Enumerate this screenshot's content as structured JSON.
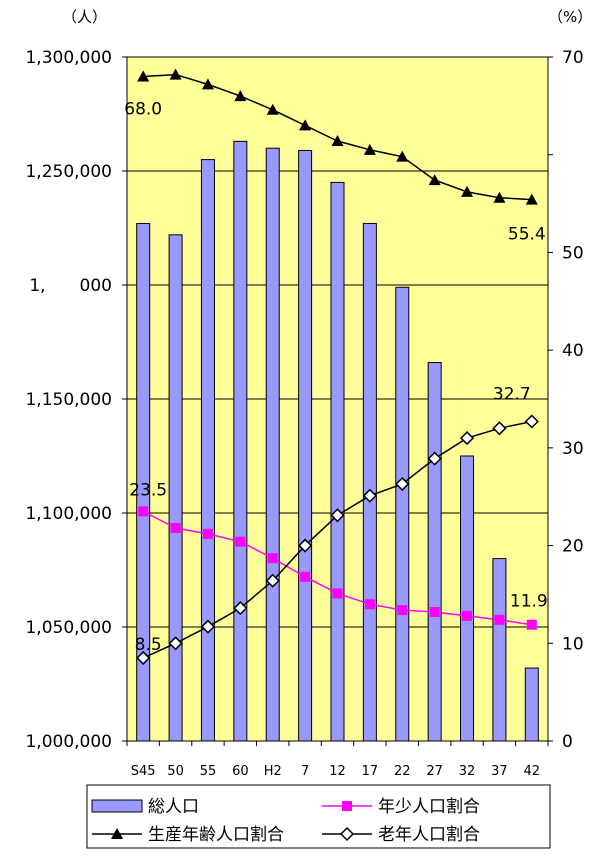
{
  "chart_data": {
    "type": "bar+line",
    "categories": [
      "S45",
      "50",
      "55",
      "60",
      "H2",
      "7",
      "12",
      "17",
      "22",
      "27",
      "32",
      "37",
      "42"
    ],
    "left_axis": {
      "unit": "（人）",
      "ylim": [
        1000000,
        1300000
      ],
      "ticks": [
        1000000,
        1050000,
        1100000,
        1150000,
        1200000,
        1250000,
        1300000
      ],
      "tick_labels": [
        "1,000,000",
        "1,050,000",
        "1,100,000",
        "1,150,000",
        "1,　　000",
        "1,250,000",
        "1,300,000"
      ]
    },
    "right_axis": {
      "unit": "（%）",
      "ylim": [
        0,
        70
      ],
      "ticks": [
        0,
        10,
        20,
        30,
        40,
        50,
        70
      ],
      "tick_labels": [
        "0",
        "10",
        "20",
        "30",
        "40",
        "50",
        "70"
      ]
    },
    "bars": {
      "name": "総人口",
      "color": "#9999FF",
      "values": [
        1227000,
        1222000,
        1255000,
        1263000,
        1260000,
        1259000,
        1245000,
        1227000,
        1199000,
        1166000,
        1125000,
        1080000,
        1032000
      ]
    },
    "lines": [
      {
        "name": "生産年齢人口割合",
        "color": "#000000",
        "marker": "triangle",
        "values": [
          68.0,
          68.2,
          67.2,
          66.0,
          64.6,
          63.0,
          61.4,
          60.5,
          59.8,
          57.4,
          56.2,
          55.6,
          55.4
        ]
      },
      {
        "name": "年少人口割合",
        "color": "#FF00FF",
        "marker": "square",
        "values": [
          23.5,
          21.8,
          21.2,
          20.4,
          18.7,
          16.8,
          15.1,
          14.0,
          13.4,
          13.2,
          12.8,
          12.4,
          11.9
        ]
      },
      {
        "name": "老年人口割合",
        "color": "#000000",
        "marker": "diamond",
        "values": [
          8.5,
          10.0,
          11.7,
          13.6,
          16.4,
          20.0,
          23.1,
          25.1,
          26.3,
          28.9,
          31.0,
          32.0,
          32.7
        ]
      }
    ],
    "data_labels": [
      {
        "series": "生産年齢人口割合",
        "index": 0,
        "text": "68.0"
      },
      {
        "series": "生産年齢人口割合",
        "index": 12,
        "text": "55.4"
      },
      {
        "series": "年少人口割合",
        "index": 0,
        "text": "23.5"
      },
      {
        "series": "年少人口割合",
        "index": 12,
        "text": "11.9"
      },
      {
        "series": "老年人口割合",
        "index": 0,
        "text": "8.5"
      },
      {
        "series": "老年人口割合",
        "index": 12,
        "text": "32.7"
      }
    ],
    "plot_background": "#FFFF99",
    "grid": true,
    "legend": {
      "placement": "bottom",
      "items": [
        {
          "label": "総人口",
          "kind": "bar"
        },
        {
          "label": "年少人口割合",
          "kind": "line-square"
        },
        {
          "label": "生産年齢人口割合",
          "kind": "line-triangle"
        },
        {
          "label": "老年人口割合",
          "kind": "line-diamond"
        }
      ]
    }
  }
}
